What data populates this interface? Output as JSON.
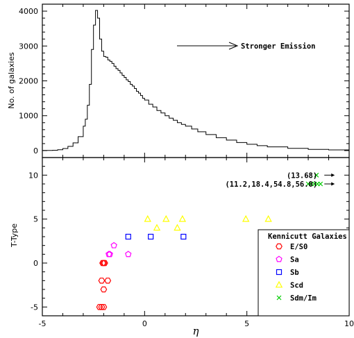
{
  "chart_data": [
    {
      "type": "histogram",
      "ylabel": "No. of galaxies",
      "xlim": [
        -5,
        10
      ],
      "ylim": [
        -200,
        4200
      ],
      "yticks": [
        0,
        1000,
        2000,
        3000,
        4000
      ],
      "annotation": "Stronger Emission",
      "x": [
        -5.0,
        -4.75,
        -4.5,
        -4.25,
        -4.0,
        -3.75,
        -3.5,
        -3.25,
        -3.0,
        -2.9,
        -2.8,
        -2.7,
        -2.6,
        -2.5,
        -2.4,
        -2.3,
        -2.2,
        -2.1,
        -2.0,
        -1.9,
        -1.8,
        -1.7,
        -1.6,
        -1.5,
        -1.4,
        -1.3,
        -1.2,
        -1.1,
        -1.0,
        -0.9,
        -0.8,
        -0.7,
        -0.6,
        -0.5,
        -0.4,
        -0.3,
        -0.2,
        -0.1,
        0.0,
        0.2,
        0.4,
        0.6,
        0.8,
        1.0,
        1.2,
        1.4,
        1.6,
        1.8,
        2.0,
        2.3,
        2.6,
        3.0,
        3.5,
        4.0,
        4.5,
        5.0,
        5.5,
        6.0,
        7.0,
        8.0,
        9.0,
        10.0
      ],
      "y": [
        3,
        5,
        10,
        25,
        60,
        120,
        220,
        400,
        700,
        900,
        1300,
        1900,
        2900,
        3600,
        4020,
        3800,
        3200,
        2850,
        2700,
        2680,
        2600,
        2560,
        2500,
        2420,
        2350,
        2300,
        2230,
        2160,
        2100,
        2030,
        1980,
        1900,
        1850,
        1780,
        1700,
        1650,
        1580,
        1500,
        1450,
        1330,
        1250,
        1150,
        1080,
        1000,
        930,
        870,
        800,
        750,
        700,
        620,
        540,
        460,
        370,
        300,
        230,
        180,
        140,
        105,
        65,
        35,
        18,
        8
      ]
    },
    {
      "type": "scatter",
      "ylabel": "T-Type",
      "xlabel": "η",
      "xlim": [
        -5,
        10
      ],
      "ylim": [
        -6,
        12
      ],
      "xticks": [
        -5,
        0,
        5,
        10
      ],
      "yticks": [
        -5,
        0,
        5,
        10
      ],
      "legend_title": "Kennicutt Galaxies",
      "legend_position": "bottom-right",
      "series": [
        {
          "name": "E/S0",
          "marker": "hexagon",
          "color": "#ff0000",
          "points": [
            [
              -2.1,
              -5
            ],
            [
              -2.0,
              -5
            ],
            [
              -2.2,
              -5
            ],
            [
              -2.0,
              -3
            ],
            [
              -2.1,
              -2
            ],
            [
              -1.8,
              -2
            ],
            [
              -2.0,
              0
            ],
            [
              -1.95,
              0
            ],
            [
              -2.05,
              0
            ]
          ]
        },
        {
          "name": "Sa",
          "marker": "pentagon",
          "color": "#ff00ff",
          "points": [
            [
              -1.5,
              2
            ],
            [
              -1.7,
              1
            ],
            [
              -1.75,
              1
            ],
            [
              -0.8,
              1
            ]
          ]
        },
        {
          "name": "Sb",
          "marker": "square",
          "color": "#0000ff",
          "points": [
            [
              -0.8,
              3
            ],
            [
              0.3,
              3
            ],
            [
              1.9,
              3
            ]
          ]
        },
        {
          "name": "Scd",
          "marker": "triangle",
          "color": "#ffff00",
          "points": [
            [
              0.15,
              5
            ],
            [
              0.6,
              4
            ],
            [
              1.05,
              5
            ],
            [
              1.6,
              4
            ],
            [
              1.85,
              5
            ],
            [
              4.95,
              5
            ],
            [
              6.05,
              5
            ]
          ]
        },
        {
          "name": "Sdm/Im",
          "marker": "cross",
          "color": "#00cc00",
          "points": [
            [
              8.4,
              10
            ],
            [
              8.0,
              9
            ],
            [
              8.15,
              9
            ],
            [
              8.3,
              9
            ],
            [
              8.45,
              9
            ],
            [
              8.6,
              9
            ]
          ]
        }
      ],
      "annotations": [
        {
          "text": "(13.68)",
          "x": 8.65,
          "y": 10,
          "arrow": true
        },
        {
          "text": "(11.2,18.4,54.8,56.0)",
          "x": 8.65,
          "y": 9,
          "arrow": true
        }
      ]
    }
  ]
}
